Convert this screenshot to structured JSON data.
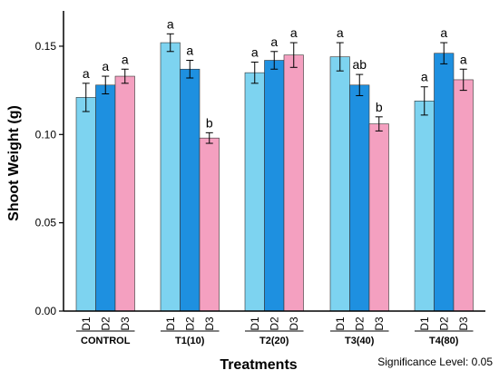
{
  "chart_data": {
    "type": "bar",
    "xlabel": "Treatments",
    "ylabel": "Shoot Weight (g)",
    "ylim": [
      0,
      0.17
    ],
    "yticks": [
      "0.00",
      "0.05",
      "0.10",
      "0.15"
    ],
    "grid": false,
    "legend": "none",
    "footnote": "Significance Level: 0.05",
    "bar_labels": [
      "D1",
      "D2",
      "D3"
    ],
    "colors": [
      "#7dd3f0",
      "#1e90e0",
      "#f4a0c0"
    ],
    "groups": [
      {
        "name": "CONTROL",
        "bars": [
          {
            "label": "D1",
            "value": 0.121,
            "error": 0.008,
            "letter": "a"
          },
          {
            "label": "D2",
            "value": 0.128,
            "error": 0.005,
            "letter": "a"
          },
          {
            "label": "D3",
            "value": 0.133,
            "error": 0.004,
            "letter": "a"
          }
        ]
      },
      {
        "name": "T1(10)",
        "bars": [
          {
            "label": "D1",
            "value": 0.152,
            "error": 0.005,
            "letter": "a"
          },
          {
            "label": "D2",
            "value": 0.137,
            "error": 0.005,
            "letter": "a"
          },
          {
            "label": "D3",
            "value": 0.098,
            "error": 0.003,
            "letter": "b"
          }
        ]
      },
      {
        "name": "T2(20)",
        "bars": [
          {
            "label": "D1",
            "value": 0.135,
            "error": 0.006,
            "letter": "a"
          },
          {
            "label": "D2",
            "value": 0.142,
            "error": 0.005,
            "letter": "a"
          },
          {
            "label": "D3",
            "value": 0.145,
            "error": 0.007,
            "letter": "a"
          }
        ]
      },
      {
        "name": "T3(40)",
        "bars": [
          {
            "label": "D1",
            "value": 0.144,
            "error": 0.008,
            "letter": "a"
          },
          {
            "label": "D2",
            "value": 0.128,
            "error": 0.006,
            "letter": "ab"
          },
          {
            "label": "D3",
            "value": 0.106,
            "error": 0.004,
            "letter": "b"
          }
        ]
      },
      {
        "name": "T4(80)",
        "bars": [
          {
            "label": "D1",
            "value": 0.119,
            "error": 0.008,
            "letter": "a"
          },
          {
            "label": "D2",
            "value": 0.146,
            "error": 0.006,
            "letter": "a"
          },
          {
            "label": "D3",
            "value": 0.131,
            "error": 0.006,
            "letter": "a"
          }
        ]
      }
    ]
  }
}
